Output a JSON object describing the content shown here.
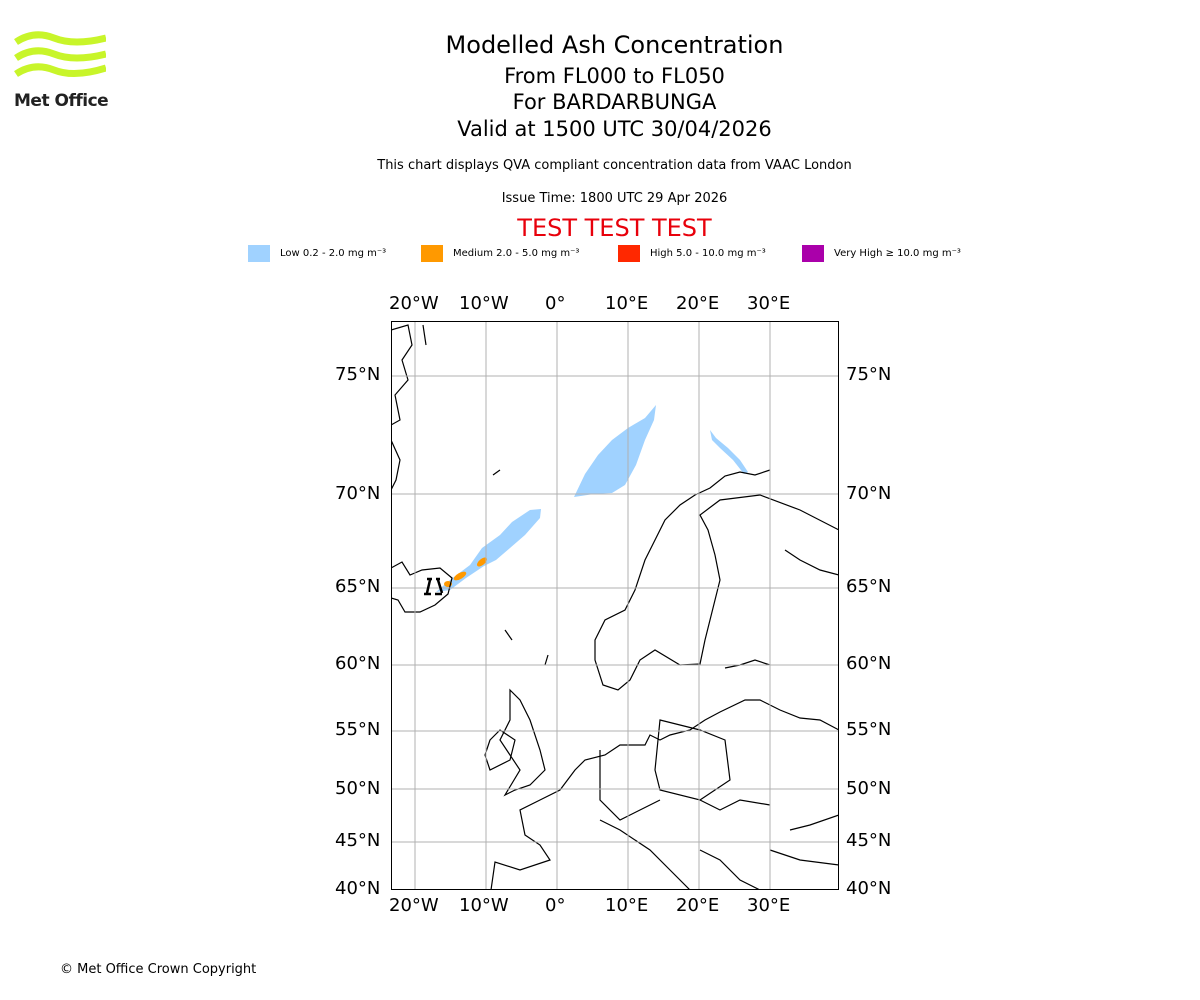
{
  "logo": {
    "text": "Met Office",
    "color": "#c8f52a"
  },
  "title": {
    "main": "Modelled Ash Concentration",
    "levels": "From FL000 to FL050",
    "volcano": "For BARDARBUNGA",
    "valid": "Valid at 1500 UTC 30/04/2026"
  },
  "subtitle": "This chart displays QVA compliant concentration data from VAAC London",
  "issue_time": "Issue Time: 1800 UTC 29 Apr 2026",
  "test_banner": "TEST TEST TEST",
  "legend": [
    {
      "label": "Low 0.2 - 2.0 mg m⁻³",
      "color": "#a0d2ff"
    },
    {
      "label": "Medium 2.0 - 5.0 mg m⁻³",
      "color": "#ff9900"
    },
    {
      "label": "High 5.0 - 10.0 mg m⁻³",
      "color": "#ff2800"
    },
    {
      "label": "Very High ≥ 10.0 mg m⁻³",
      "color": "#aa00aa"
    }
  ],
  "map": {
    "lon_labels": [
      "20°W",
      "10°W",
      "0°",
      "10°E",
      "20°E",
      "30°E"
    ],
    "lat_labels": [
      "75°N",
      "70°N",
      "65°N",
      "60°N",
      "55°N",
      "50°N",
      "45°N",
      "40°N"
    ]
  },
  "copyright": "© Met Office Crown Copyright"
}
